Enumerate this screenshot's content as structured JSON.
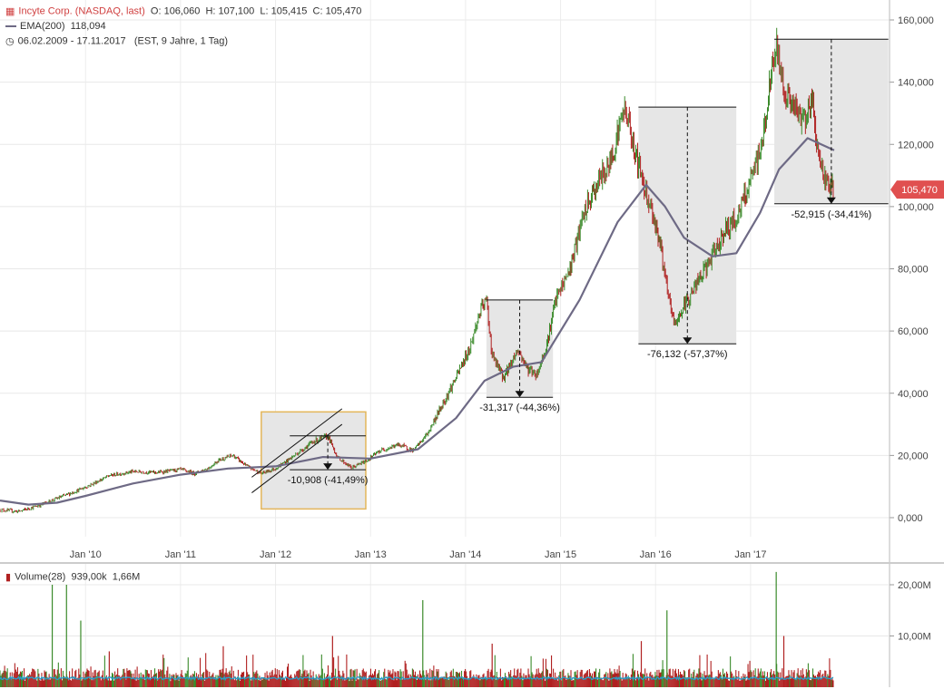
{
  "legend": {
    "title": "Incyte Corp. (NASDAQ, last)",
    "open": "O: 106,060",
    "high": "H: 107,100",
    "low": "L: 105,415",
    "close": "C: 105,470",
    "ema_label": "EMA(200)",
    "ema_value": "118,094",
    "range": "06.02.2009 - 17.11.2017",
    "range_info": "(EST, 9 Jahre, 1 Tag)"
  },
  "volume_legend": {
    "label": "Volume(28)",
    "value": "939,00k",
    "avg": "1,66M"
  },
  "last_price_label": "105,470",
  "colors": {
    "up": "#3a8a2a",
    "down": "#b02020",
    "ema": "#6e6a85",
    "volume_avg": "#2a9ec7",
    "highlight_box": "#e3b65a",
    "price_tag": "#e05050",
    "drawdown_fill": "#e6e6e6"
  },
  "chart_data": [
    {
      "type": "line",
      "title": "",
      "ylim": [
        -5000,
        160000
      ],
      "y_ticks": [
        "0,000",
        "20,000",
        "40,000",
        "60,000",
        "80,000",
        "100,000",
        "120,000",
        "140,000",
        "160,000"
      ],
      "y_tick_values": [
        0,
        20000,
        40000,
        60000,
        80000,
        100000,
        120000,
        140000,
        160000
      ],
      "x_ticks": [
        "Jan '10",
        "Jan '11",
        "Jan '12",
        "Jan '13",
        "Jan '14",
        "Jan '15",
        "Jan '16",
        "Jan '17"
      ],
      "x_tick_years": [
        2010,
        2011,
        2012,
        2013,
        2014,
        2015,
        2016,
        2017
      ],
      "x_range": [
        2009.1,
        2017.88
      ],
      "series": [
        {
          "kind": "price",
          "points": [
            [
              2009.1,
              2500
            ],
            [
              2009.3,
              2000
            ],
            [
              2009.5,
              3800
            ],
            [
              2009.7,
              6200
            ],
            [
              2009.9,
              8500
            ],
            [
              2010.05,
              10500
            ],
            [
              2010.25,
              13500
            ],
            [
              2010.5,
              14800
            ],
            [
              2010.75,
              14500
            ],
            [
              2011.0,
              15500
            ],
            [
              2011.15,
              14200
            ],
            [
              2011.3,
              16000
            ],
            [
              2011.4,
              18500
            ],
            [
              2011.55,
              20000
            ],
            [
              2011.7,
              16500
            ],
            [
              2011.85,
              14200
            ],
            [
              2012.0,
              15800
            ],
            [
              2012.2,
              20000
            ],
            [
              2012.4,
              24500
            ],
            [
              2012.55,
              26300
            ],
            [
              2012.65,
              19500
            ],
            [
              2012.8,
              16000
            ],
            [
              2012.95,
              18200
            ],
            [
              2013.1,
              21500
            ],
            [
              2013.3,
              23500
            ],
            [
              2013.45,
              21500
            ],
            [
              2013.6,
              27000
            ],
            [
              2013.75,
              36000
            ],
            [
              2013.9,
              45000
            ],
            [
              2014.05,
              55000
            ],
            [
              2014.15,
              66000
            ],
            [
              2014.22,
              70000
            ],
            [
              2014.28,
              52000
            ],
            [
              2014.4,
              45000
            ],
            [
              2014.55,
              54000
            ],
            [
              2014.65,
              48000
            ],
            [
              2014.75,
              46000
            ],
            [
              2014.85,
              55000
            ],
            [
              2014.95,
              70000
            ],
            [
              2015.1,
              80000
            ],
            [
              2015.25,
              98000
            ],
            [
              2015.4,
              108000
            ],
            [
              2015.52,
              114000
            ],
            [
              2015.62,
              126000
            ],
            [
              2015.68,
              132000
            ],
            [
              2015.78,
              118000
            ],
            [
              2015.88,
              107000
            ],
            [
              2015.95,
              100000
            ],
            [
              2016.05,
              88000
            ],
            [
              2016.12,
              73000
            ],
            [
              2016.2,
              62000
            ],
            [
              2016.3,
              68000
            ],
            [
              2016.45,
              76000
            ],
            [
              2016.6,
              84000
            ],
            [
              2016.72,
              92000
            ],
            [
              2016.85,
              96000
            ],
            [
              2017.0,
              108000
            ],
            [
              2017.12,
              120000
            ],
            [
              2017.2,
              138000
            ],
            [
              2017.27,
              152000
            ],
            [
              2017.35,
              138000
            ],
            [
              2017.45,
              132000
            ],
            [
              2017.55,
              128000
            ],
            [
              2017.65,
              134000
            ],
            [
              2017.72,
              115000
            ],
            [
              2017.8,
              108000
            ],
            [
              2017.88,
              105470
            ]
          ]
        },
        {
          "kind": "ema",
          "name": "EMA(200)",
          "points": [
            [
              2009.1,
              5500
            ],
            [
              2009.4,
              4200
            ],
            [
              2009.7,
              4800
            ],
            [
              2010.0,
              7000
            ],
            [
              2010.5,
              11000
            ],
            [
              2011.0,
              13800
            ],
            [
              2011.5,
              15800
            ],
            [
              2012.0,
              16500
            ],
            [
              2012.5,
              19500
            ],
            [
              2013.0,
              19000
            ],
            [
              2013.5,
              22000
            ],
            [
              2013.9,
              32000
            ],
            [
              2014.2,
              44000
            ],
            [
              2014.5,
              48500
            ],
            [
              2014.8,
              50000
            ],
            [
              2015.2,
              70000
            ],
            [
              2015.6,
              95000
            ],
            [
              2015.9,
              107000
            ],
            [
              2016.1,
              100000
            ],
            [
              2016.3,
              90000
            ],
            [
              2016.6,
              84000
            ],
            [
              2016.85,
              85000
            ],
            [
              2017.1,
              98000
            ],
            [
              2017.3,
              112000
            ],
            [
              2017.6,
              122000
            ],
            [
              2017.88,
              118094
            ]
          ]
        }
      ],
      "drawdowns": [
        {
          "x0": 2011.85,
          "x1": 2012.95,
          "top": 26300,
          "bottom": 15400,
          "label": "-10,908 (-41,49%)",
          "highlight": true
        },
        {
          "x0": 2014.22,
          "x1": 2014.92,
          "top": 70000,
          "bottom": 38700,
          "label": "-31,317 (-44,36%)"
        },
        {
          "x0": 2015.82,
          "x1": 2016.85,
          "top": 132000,
          "bottom": 55900,
          "label": "-76,132 (-57,37%)"
        },
        {
          "x0": 2017.25,
          "x1": 2018.45,
          "top": 153800,
          "bottom": 100900,
          "label": "-52,915 (-34,41%)"
        }
      ],
      "highlight_box": {
        "x0": 2011.85,
        "x1": 2012.95,
        "top": 34000,
        "bottom": 2800
      }
    },
    {
      "type": "bar",
      "title": "",
      "ylabel": "",
      "y_ticks": [
        "10,00M",
        "20,00M"
      ],
      "y_tick_values": [
        10000000,
        20000000
      ],
      "ylim": [
        0,
        24000000
      ],
      "spikes": [
        [
          2009.65,
          20000000
        ],
        [
          2009.8,
          20000000
        ],
        [
          2009.95,
          13000000
        ],
        [
          2010.25,
          7000000
        ],
        [
          2011.45,
          8000000
        ],
        [
          2012.6,
          10000000
        ],
        [
          2013.55,
          17000000
        ],
        [
          2014.28,
          8500000
        ],
        [
          2015.85,
          9000000
        ],
        [
          2016.12,
          15000000
        ],
        [
          2017.27,
          22500000
        ],
        [
          2017.35,
          10000000
        ]
      ]
    }
  ]
}
